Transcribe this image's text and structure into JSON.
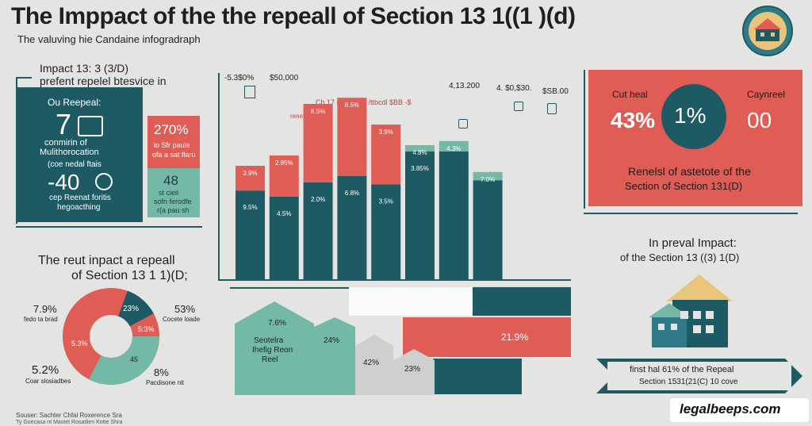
{
  "header": {
    "title": "The  Imppact  of the the repeall of Section 13 1((1 )(d)",
    "subtitle": "The valuving hie Candaine infogradraph"
  },
  "left_panel": {
    "heading_line1": "Impact 13: 3 (3/D)",
    "heading_line2": "prefent repelel btesvice in",
    "teal_card": {
      "label": "Ou Reepeal:",
      "big_number": "7",
      "line1": "conmirin of",
      "line2": "Mulithorocation",
      "line3": "(coe nedal ftais",
      "big_number2": "-40",
      "line4": "cep Reenat foritis",
      "line5": "hegoacthing"
    },
    "coral_card": {
      "value": "270%",
      "line1": "io Sfr paule",
      "line2": "ofa a sat flaru"
    },
    "mint_card": {
      "value": "48",
      "line1": "st cieil",
      "line2": "sofn ferodfe",
      "line3": "r(a pau sh"
    }
  },
  "donut_section": {
    "heading_line1": "The reut inpact a repeall",
    "heading_line2": "of Section 13 1 1)(D;",
    "labels": [
      {
        "value": "7.9%",
        "text": "fedo ta brad"
      },
      {
        "value": "23%",
        "text": ""
      },
      {
        "value": "53%",
        "text": "Cocete loade"
      },
      {
        "value": "5:3%",
        "text": ""
      },
      {
        "value": "5.3%",
        "text": ""
      },
      {
        "value": "45",
        "text": ""
      },
      {
        "value": "5.2%",
        "text": "Coar slosiadbes"
      },
      {
        "value": "8%",
        "text": "Pacdisone nit"
      }
    ]
  },
  "chart_data": {
    "type": "bar",
    "top_labels": [
      "-5.3$0%",
      "$50,000",
      "4,13.200",
      "4. $0,$30.",
      "$SB.00"
    ],
    "annotation": "Cb 17 rI $BB 18 /ttbcdl $BB -$",
    "annotation2": "renel pa fine",
    "series": [
      {
        "color": "#1e5a64",
        "values": [
          43,
          40,
          47,
          50,
          46,
          62,
          62,
          48
        ]
      },
      {
        "color": "#df5d55",
        "values": [
          12,
          20,
          38,
          38,
          29,
          0,
          0,
          0
        ]
      },
      {
        "color": "#74b9a5",
        "values": [
          0,
          0,
          0,
          0,
          0,
          3,
          5,
          4
        ]
      }
    ],
    "bar_labels_upper": [
      "3.9%",
      "2.85%",
      "8.5%",
      "8.5%",
      "3.9%",
      "4.8%",
      "4.3%",
      "7.0%"
    ],
    "bar_labels_lower": [
      "9.5%",
      "4.5%",
      "2.0%",
      "6.8%",
      "3.5%",
      "3.85%",
      "",
      ""
    ]
  },
  "lower_chart": {
    "labels": [
      "7.6%",
      "Seotelra",
      "Ihefig Reon",
      "Reel",
      "24%",
      "42%",
      "23%",
      "21.9%"
    ]
  },
  "right_panel": {
    "coral_card": {
      "left_title": "Cut heal",
      "right_title": "Caynreel",
      "left_value": "43%",
      "circle_value": "1%",
      "right_value": "00",
      "caption_line1": "Renelsl of astetote of the",
      "caption_line2": "Section of Section 131(D)"
    },
    "impact_heading_line1": "In preval Impact:",
    "impact_heading_line2": "of the Section 13  ((3) 1(D)",
    "banner_line1": "finst hal 61% of the Repeal",
    "banner_line2": "Section 1531(21(C) 10 cove"
  },
  "footer": {
    "source_line1": "Souser: Sachter Chfal Roxerence Sra",
    "source_line2": "Ty Goecasa nt Mastet Rosatlien Kotte Shra",
    "brand": "legalbeeps.com"
  },
  "colors": {
    "teal": "#1e5a64",
    "coral": "#df5d55",
    "mint": "#74b9a5",
    "background": "#e4e4e3"
  },
  "icons": [
    "house-seal-icon",
    "house-icon",
    "bar-decor-icon"
  ]
}
